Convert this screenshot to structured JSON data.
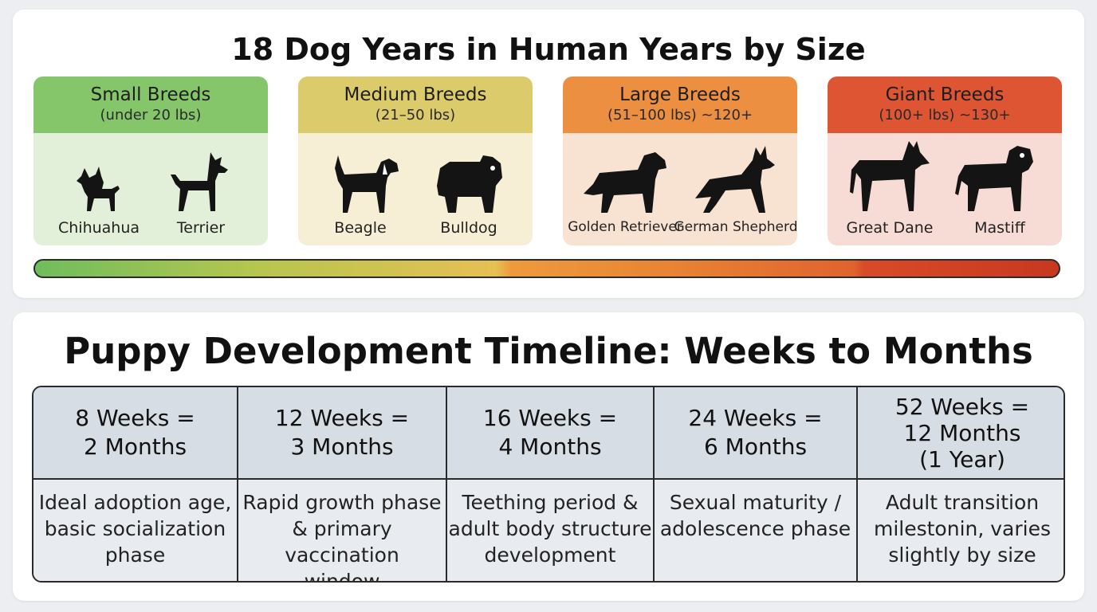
{
  "size_section": {
    "title": "18 Dog Years in Human Years by Size",
    "cards": [
      {
        "name": "Small Breeds",
        "range": "(under 20 lbs)",
        "header_color": "#86c66b",
        "body_color": "#e3f0d9",
        "dogs": [
          {
            "label": "Chihuahua",
            "icon": "chihuahua-silhouette"
          },
          {
            "label": "Terrier",
            "icon": "terrier-silhouette"
          }
        ]
      },
      {
        "name": "Medium Breeds",
        "range": "(21–50 lbs)",
        "header_color": "#dccb6b",
        "body_color": "#f6efd6",
        "dogs": [
          {
            "label": "Beagle",
            "icon": "beagle-silhouette"
          },
          {
            "label": "Bulldog",
            "icon": "bulldog-silhouette"
          }
        ]
      },
      {
        "name": "Large Breeds",
        "range": "(51–100 lbs) ~120+",
        "header_color": "#ec8f40",
        "body_color": "#f8e3d3",
        "dogs": [
          {
            "label": "Golden Retriever",
            "icon": "golden-retriever-silhouette"
          },
          {
            "label": "German Shepherd",
            "icon": "german-shepherd-silhouette"
          }
        ]
      },
      {
        "name": "Giant Breeds",
        "range": "(100+ lbs) ~130+",
        "header_color": "#de5533",
        "body_color": "#f7dcd6",
        "dogs": [
          {
            "label": "Great Dane",
            "icon": "great-dane-silhouette"
          },
          {
            "label": "Mastiff",
            "icon": "mastiff-silhouette"
          }
        ]
      }
    ]
  },
  "timeline_section": {
    "title": "Puppy Development Timeline: Weeks to Months",
    "columns": [
      {
        "weeks": "8 Weeks =",
        "months": "2 Months",
        "extra": "",
        "description": [
          "Ideal adoption age,",
          "basic socialization",
          "phase"
        ]
      },
      {
        "weeks": "12 Weeks =",
        "months": "3 Months",
        "extra": "",
        "description": [
          "Rapid growth phase",
          "& primary vaccination",
          "window"
        ]
      },
      {
        "weeks": "16 Weeks =",
        "months": "4 Months",
        "extra": "",
        "description": [
          "Teething period &",
          "adult body structure",
          "development"
        ]
      },
      {
        "weeks": "24 Weeks =",
        "months": "6 Months",
        "extra": "",
        "description": [
          "Sexual maturity /",
          "adolescence phase",
          ""
        ]
      },
      {
        "weeks": "52 Weeks =",
        "months": "12 Months",
        "extra": "(1 Year)",
        "description": [
          "Adult transition",
          "milestonin, varies",
          "slightly by size"
        ]
      }
    ]
  }
}
